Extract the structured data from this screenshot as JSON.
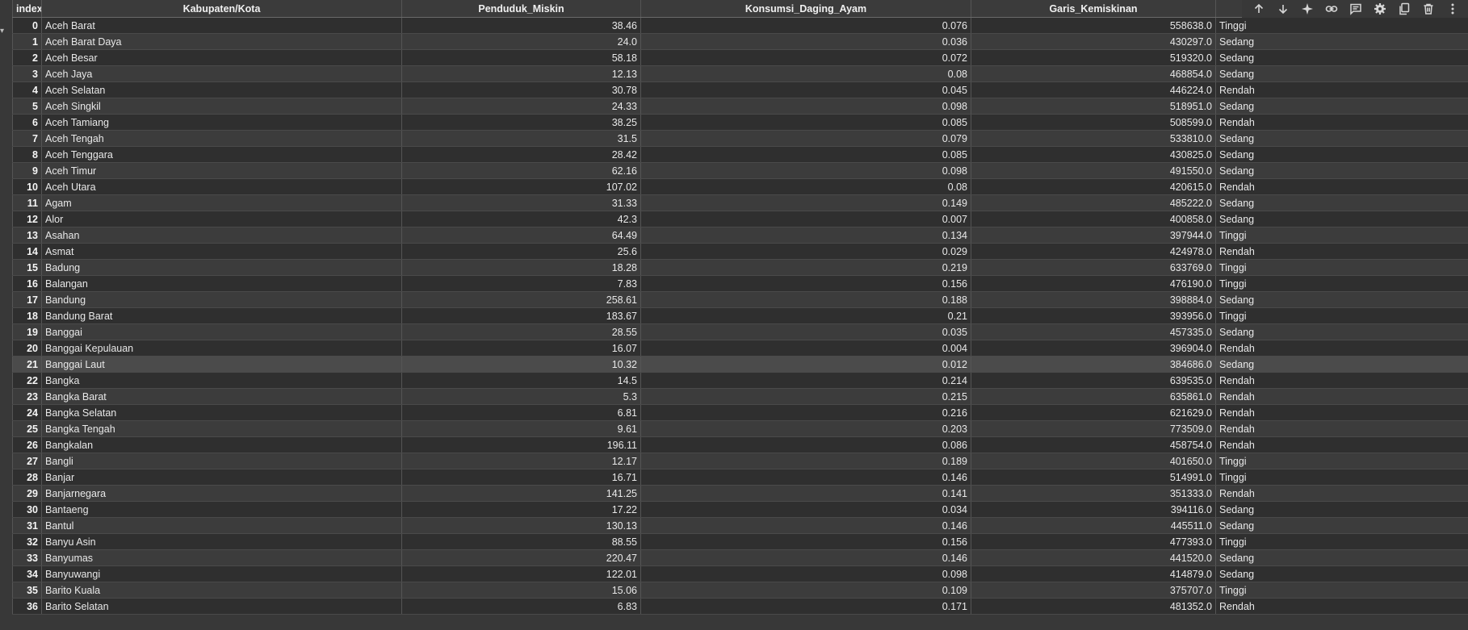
{
  "table": {
    "columns": [
      "index",
      "Kabupaten/Kota",
      "Penduduk_Miskin",
      "Konsumsi_Daging_Ayam",
      "Garis_Kemiskinan",
      ""
    ],
    "rows": [
      [
        "0",
        "Aceh Barat",
        "38.46",
        "0.076",
        "558638.0",
        "Tinggi"
      ],
      [
        "1",
        "Aceh Barat Daya",
        "24.0",
        "0.036",
        "430297.0",
        "Sedang"
      ],
      [
        "2",
        "Aceh Besar",
        "58.18",
        "0.072",
        "519320.0",
        "Sedang"
      ],
      [
        "3",
        "Aceh Jaya",
        "12.13",
        "0.08",
        "468854.0",
        "Sedang"
      ],
      [
        "4",
        "Aceh Selatan",
        "30.78",
        "0.045",
        "446224.0",
        "Rendah"
      ],
      [
        "5",
        "Aceh Singkil",
        "24.33",
        "0.098",
        "518951.0",
        "Sedang"
      ],
      [
        "6",
        "Aceh Tamiang",
        "38.25",
        "0.085",
        "508599.0",
        "Rendah"
      ],
      [
        "7",
        "Aceh Tengah",
        "31.5",
        "0.079",
        "533810.0",
        "Sedang"
      ],
      [
        "8",
        "Aceh Tenggara",
        "28.42",
        "0.085",
        "430825.0",
        "Sedang"
      ],
      [
        "9",
        "Aceh Timur",
        "62.16",
        "0.098",
        "491550.0",
        "Sedang"
      ],
      [
        "10",
        "Aceh Utara",
        "107.02",
        "0.08",
        "420615.0",
        "Rendah"
      ],
      [
        "11",
        "Agam",
        "31.33",
        "0.149",
        "485222.0",
        "Sedang"
      ],
      [
        "12",
        "Alor",
        "42.3",
        "0.007",
        "400858.0",
        "Sedang"
      ],
      [
        "13",
        "Asahan",
        "64.49",
        "0.134",
        "397944.0",
        "Tinggi"
      ],
      [
        "14",
        "Asmat",
        "25.6",
        "0.029",
        "424978.0",
        "Rendah"
      ],
      [
        "15",
        "Badung",
        "18.28",
        "0.219",
        "633769.0",
        "Tinggi"
      ],
      [
        "16",
        "Balangan",
        "7.83",
        "0.156",
        "476190.0",
        "Tinggi"
      ],
      [
        "17",
        "Bandung",
        "258.61",
        "0.188",
        "398884.0",
        "Sedang"
      ],
      [
        "18",
        "Bandung Barat",
        "183.67",
        "0.21",
        "393956.0",
        "Tinggi"
      ],
      [
        "19",
        "Banggai",
        "28.55",
        "0.035",
        "457335.0",
        "Sedang"
      ],
      [
        "20",
        "Banggai Kepulauan",
        "16.07",
        "0.004",
        "396904.0",
        "Rendah"
      ],
      [
        "21",
        "Banggai Laut",
        "10.32",
        "0.012",
        "384686.0",
        "Sedang"
      ],
      [
        "22",
        "Bangka",
        "14.5",
        "0.214",
        "639535.0",
        "Rendah"
      ],
      [
        "23",
        "Bangka Barat",
        "5.3",
        "0.215",
        "635861.0",
        "Rendah"
      ],
      [
        "24",
        "Bangka Selatan",
        "6.81",
        "0.216",
        "621629.0",
        "Rendah"
      ],
      [
        "25",
        "Bangka Tengah",
        "9.61",
        "0.203",
        "773509.0",
        "Rendah"
      ],
      [
        "26",
        "Bangkalan",
        "196.11",
        "0.086",
        "458754.0",
        "Rendah"
      ],
      [
        "27",
        "Bangli",
        "12.17",
        "0.189",
        "401650.0",
        "Tinggi"
      ],
      [
        "28",
        "Banjar",
        "16.71",
        "0.146",
        "514991.0",
        "Tinggi"
      ],
      [
        "29",
        "Banjarnegara",
        "141.25",
        "0.141",
        "351333.0",
        "Rendah"
      ],
      [
        "30",
        "Bantaeng",
        "17.22",
        "0.034",
        "394116.0",
        "Sedang"
      ],
      [
        "31",
        "Bantul",
        "130.13",
        "0.146",
        "445511.0",
        "Sedang"
      ],
      [
        "32",
        "Banyu Asin",
        "88.55",
        "0.156",
        "477393.0",
        "Tinggi"
      ],
      [
        "33",
        "Banyumas",
        "220.47",
        "0.146",
        "441520.0",
        "Sedang"
      ],
      [
        "34",
        "Banyuwangi",
        "122.01",
        "0.098",
        "414879.0",
        "Sedang"
      ],
      [
        "35",
        "Barito Kuala",
        "15.06",
        "0.109",
        "375707.0",
        "Tinggi"
      ],
      [
        "36",
        "Barito Selatan",
        "6.83",
        "0.171",
        "481352.0",
        "Rendah"
      ]
    ],
    "highlighted_row": 21
  },
  "toolbar": {
    "icons": [
      "arrow-up-icon",
      "arrow-down-icon",
      "sparkle-icon",
      "link-icon",
      "comment-icon",
      "gear-icon",
      "copy-icon",
      "trash-icon",
      "more-vertical-icon"
    ]
  },
  "gutter": {
    "icon": "chevron-down-icon"
  }
}
